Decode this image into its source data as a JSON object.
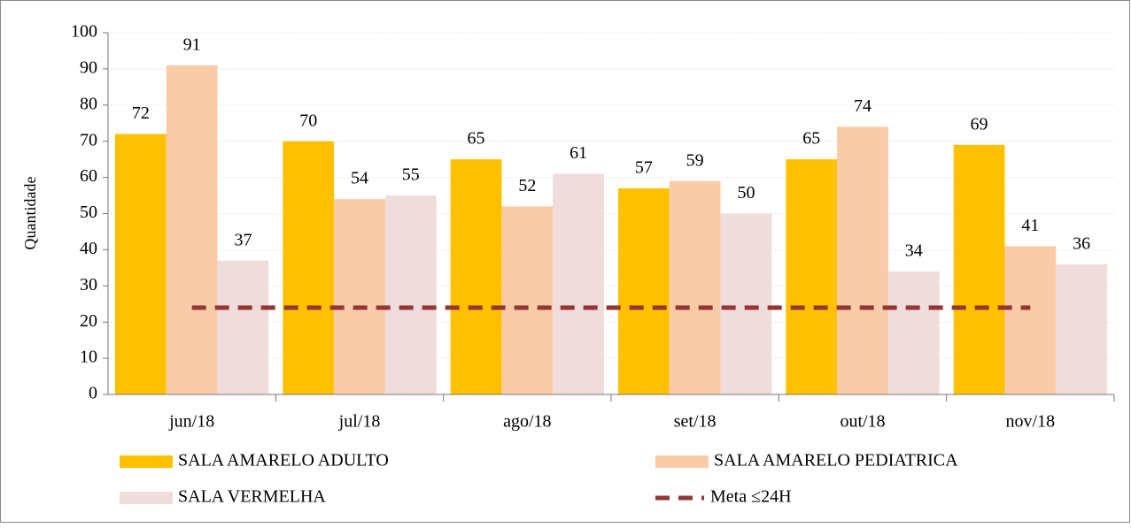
{
  "chart_data": {
    "type": "bar",
    "y_label": "Quantidade",
    "categories": [
      "jun/18",
      "jul/18",
      "ago/18",
      "set/18",
      "out/18",
      "nov/18"
    ],
    "series": [
      {
        "name": "SALA AMARELO ADULTO",
        "color": "#FFC000",
        "type": "bar",
        "values": [
          72,
          70,
          65,
          57,
          65,
          69
        ]
      },
      {
        "name": "SALA AMARELO PEDIATRICA",
        "color": "#F9CBA8",
        "type": "bar",
        "values": [
          91,
          54,
          52,
          59,
          74,
          41
        ]
      },
      {
        "name": "SALA VERMELHA",
        "color": "#F0DCDC",
        "type": "bar",
        "values": [
          37,
          55,
          61,
          50,
          34,
          36
        ]
      },
      {
        "name": "Meta ≤24H",
        "color": "#943634",
        "type": "line",
        "dashed": true,
        "values": [
          24,
          24,
          24,
          24,
          24,
          24
        ]
      }
    ],
    "ylim": [
      0,
      100
    ],
    "yticks": [
      0,
      10,
      20,
      30,
      40,
      50,
      60,
      70,
      80,
      90,
      100
    ],
    "grid": true
  }
}
